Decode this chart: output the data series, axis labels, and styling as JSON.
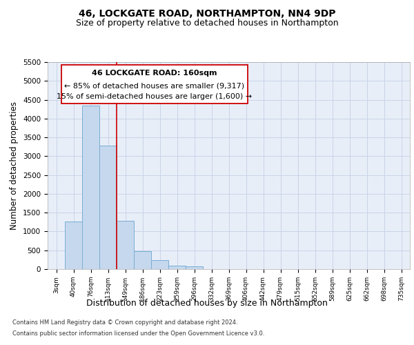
{
  "title_line1": "46, LOCKGATE ROAD, NORTHAMPTON, NN4 9DP",
  "title_line2": "Size of property relative to detached houses in Northampton",
  "xlabel": "Distribution of detached houses by size in Northampton",
  "ylabel": "Number of detached properties",
  "footer_line1": "Contains HM Land Registry data © Crown copyright and database right 2024.",
  "footer_line2": "Contains public sector information licensed under the Open Government Licence v3.0.",
  "categories": [
    "3sqm",
    "40sqm",
    "76sqm",
    "113sqm",
    "149sqm",
    "186sqm",
    "223sqm",
    "259sqm",
    "296sqm",
    "332sqm",
    "369sqm",
    "406sqm",
    "442sqm",
    "479sqm",
    "515sqm",
    "552sqm",
    "589sqm",
    "625sqm",
    "662sqm",
    "698sqm",
    "735sqm"
  ],
  "values": [
    0,
    1270,
    4340,
    3280,
    1280,
    480,
    240,
    100,
    70,
    0,
    0,
    0,
    0,
    0,
    0,
    0,
    0,
    0,
    0,
    0,
    0
  ],
  "bar_color": "#c5d8ed",
  "bar_edge_color": "#7aadd4",
  "annotation_box_color": "#ffffff",
  "annotation_box_edge": "#cc0000",
  "annotation_line_color": "#cc0000",
  "annotation_text_line1": "46 LOCKGATE ROAD: 160sqm",
  "annotation_text_line2": "← 85% of detached houses are smaller (9,317)",
  "annotation_text_line3": "15% of semi-detached houses are larger (1,600) →",
  "red_line_x": 3.5,
  "ylim": [
    0,
    5500
  ],
  "yticks": [
    0,
    500,
    1000,
    1500,
    2000,
    2500,
    3000,
    3500,
    4000,
    4500,
    5000,
    5500
  ],
  "grid_color": "#c8d4e8",
  "background_color": "#e8eef8",
  "figure_background": "#ffffff",
  "title_fontsize": 10,
  "subtitle_fontsize": 9,
  "annotation_fontsize": 8,
  "xlabel_fontsize": 9,
  "ylabel_fontsize": 8.5
}
